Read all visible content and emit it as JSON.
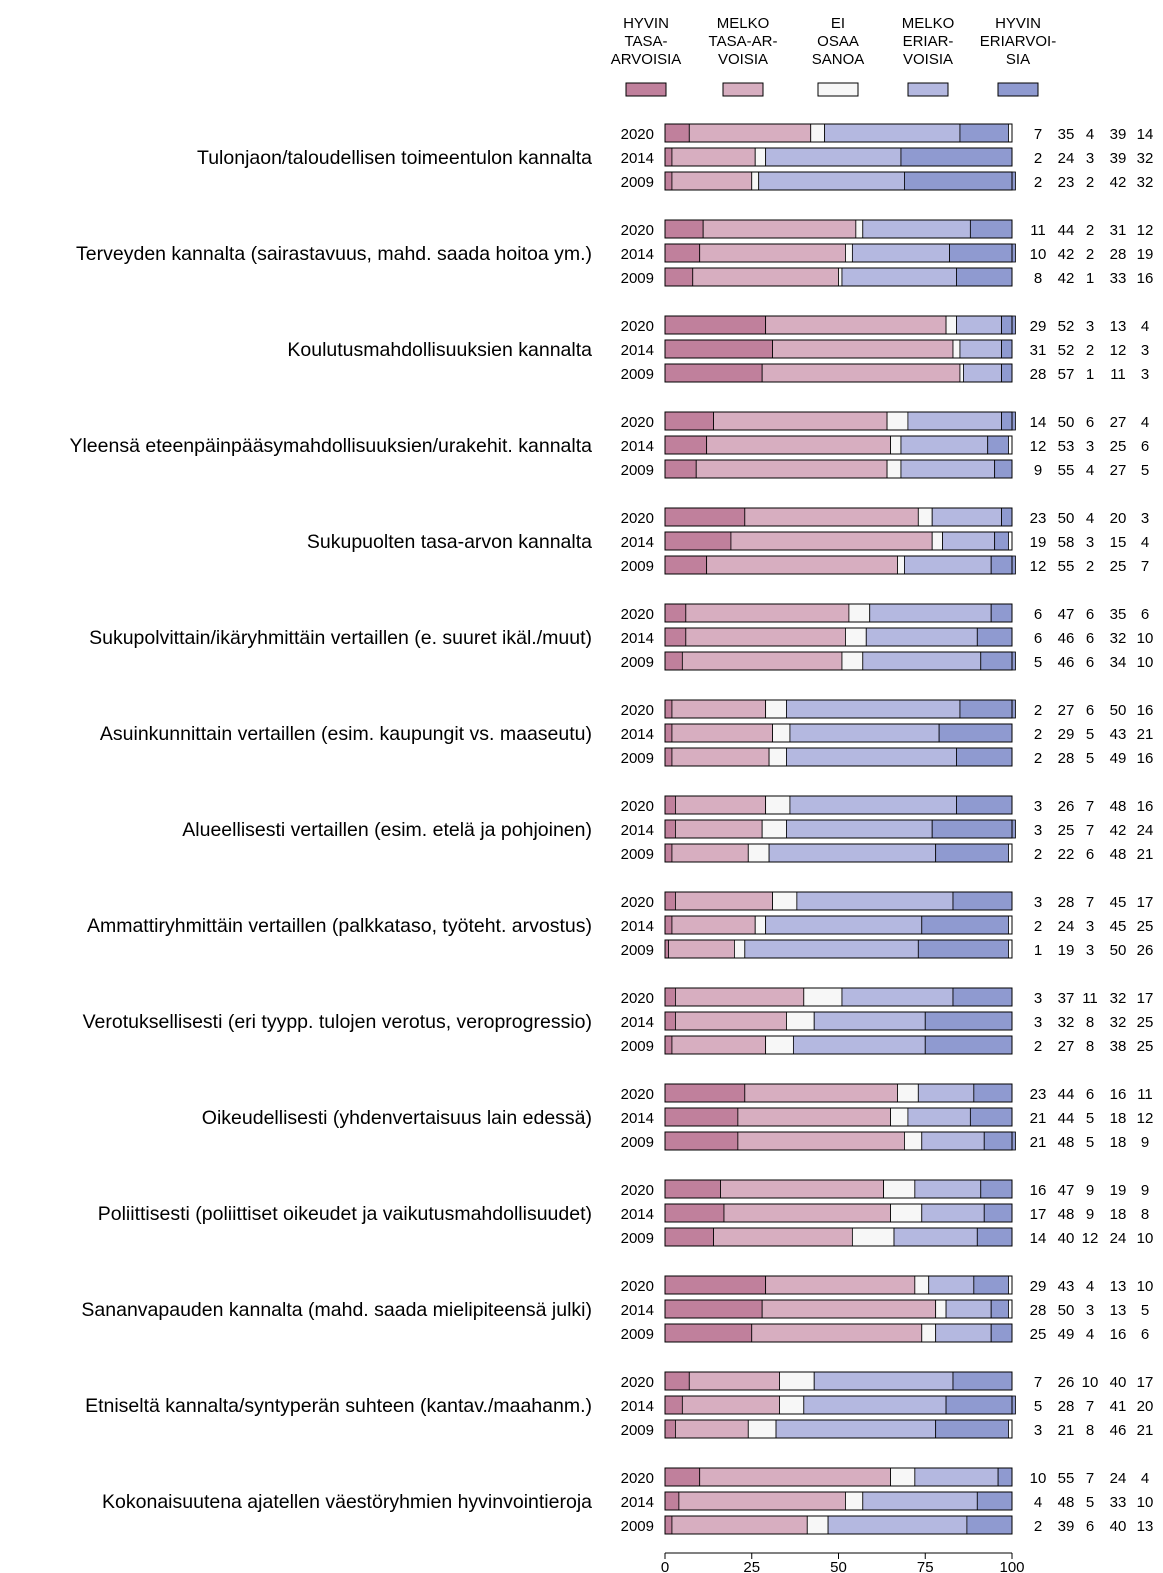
{
  "chart_data": {
    "type": "bar",
    "stacked": true,
    "orientation": "horizontal",
    "legend": {
      "placement": "top",
      "entries": [
        {
          "lines": [
            "HYVIN",
            "TASA-",
            "ARVOISIA"
          ],
          "color": "#c0809c"
        },
        {
          "lines": [
            "MELKO",
            "TASA-AR-",
            "VOISIA"
          ],
          "color": "#d7aec0"
        },
        {
          "lines": [
            "EI",
            "OSAA",
            "SANOA"
          ],
          "color": "#f7f7f7"
        },
        {
          "lines": [
            "MELKO",
            "ERIAR-",
            "VOISIA"
          ],
          "color": "#b4b8e0"
        },
        {
          "lines": [
            "HYVIN",
            "ERIARVOI-",
            "SIA"
          ],
          "color": "#8f9ad0"
        }
      ]
    },
    "xlim": [
      0,
      100
    ],
    "x_ticks": [
      "0",
      "25",
      "50",
      "75",
      "100"
    ],
    "groups": [
      {
        "label": "Tulonjaon/taloudellisen toimeentulon kannalta",
        "rows": [
          {
            "year": "2020",
            "values": [
              7,
              35,
              4,
              39,
              14
            ]
          },
          {
            "year": "2014",
            "values": [
              2,
              24,
              3,
              39,
              32
            ]
          },
          {
            "year": "2009",
            "values": [
              2,
              23,
              2,
              42,
              32
            ]
          }
        ]
      },
      {
        "label": "Terveyden kannalta (sairastavuus, mahd. saada hoitoa ym.)",
        "rows": [
          {
            "year": "2020",
            "values": [
              11,
              44,
              2,
              31,
              12
            ]
          },
          {
            "year": "2014",
            "values": [
              10,
              42,
              2,
              28,
              19
            ]
          },
          {
            "year": "2009",
            "values": [
              8,
              42,
              1,
              33,
              16
            ]
          }
        ]
      },
      {
        "label": "Koulutusmahdollisuuksien kannalta",
        "rows": [
          {
            "year": "2020",
            "values": [
              29,
              52,
              3,
              13,
              4
            ]
          },
          {
            "year": "2014",
            "values": [
              31,
              52,
              2,
              12,
              3
            ]
          },
          {
            "year": "2009",
            "values": [
              28,
              57,
              1,
              11,
              3
            ]
          }
        ]
      },
      {
        "label": "Yleensä eteenpäinpääsymahdollisuuksien/urakehit. kannalta",
        "rows": [
          {
            "year": "2020",
            "values": [
              14,
              50,
              6,
              27,
              4
            ]
          },
          {
            "year": "2014",
            "values": [
              12,
              53,
              3,
              25,
              6
            ]
          },
          {
            "year": "2009",
            "values": [
              9,
              55,
              4,
              27,
              5
            ]
          }
        ]
      },
      {
        "label": "Sukupuolten tasa-arvon kannalta",
        "rows": [
          {
            "year": "2020",
            "values": [
              23,
              50,
              4,
              20,
              3
            ]
          },
          {
            "year": "2014",
            "values": [
              19,
              58,
              3,
              15,
              4
            ]
          },
          {
            "year": "2009",
            "values": [
              12,
              55,
              2,
              25,
              7
            ]
          }
        ]
      },
      {
        "label": "Sukupolvittain/ikäryhmittäin vertaillen (e. suuret ikäl./muut)",
        "rows": [
          {
            "year": "2020",
            "values": [
              6,
              47,
              6,
              35,
              6
            ]
          },
          {
            "year": "2014",
            "values": [
              6,
              46,
              6,
              32,
              10
            ]
          },
          {
            "year": "2009",
            "values": [
              5,
              46,
              6,
              34,
              10
            ]
          }
        ]
      },
      {
        "label": "Asuinkunnittain vertaillen (esim. kaupungit vs. maaseutu)",
        "rows": [
          {
            "year": "2020",
            "values": [
              2,
              27,
              6,
              50,
              16
            ]
          },
          {
            "year": "2014",
            "values": [
              2,
              29,
              5,
              43,
              21
            ]
          },
          {
            "year": "2009",
            "values": [
              2,
              28,
              5,
              49,
              16
            ]
          }
        ]
      },
      {
        "label": "Alueellisesti vertaillen (esim. etelä ja pohjoinen)",
        "rows": [
          {
            "year": "2020",
            "values": [
              3,
              26,
              7,
              48,
              16
            ]
          },
          {
            "year": "2014",
            "values": [
              3,
              25,
              7,
              42,
              24
            ]
          },
          {
            "year": "2009",
            "values": [
              2,
              22,
              6,
              48,
              21
            ]
          }
        ]
      },
      {
        "label": "Ammattiryhmittäin vertaillen (palkkataso, työteht. arvostus)",
        "rows": [
          {
            "year": "2020",
            "values": [
              3,
              28,
              7,
              45,
              17
            ]
          },
          {
            "year": "2014",
            "values": [
              2,
              24,
              3,
              45,
              25
            ]
          },
          {
            "year": "2009",
            "values": [
              1,
              19,
              3,
              50,
              26
            ]
          }
        ]
      },
      {
        "label": "Verotuksellisesti (eri tyypp. tulojen verotus, veroprogressio)",
        "rows": [
          {
            "year": "2020",
            "values": [
              3,
              37,
              11,
              32,
              17
            ]
          },
          {
            "year": "2014",
            "values": [
              3,
              32,
              8,
              32,
              25
            ]
          },
          {
            "year": "2009",
            "values": [
              2,
              27,
              8,
              38,
              25
            ]
          }
        ]
      },
      {
        "label": "Oikeudellisesti (yhdenvertaisuus lain edessä)",
        "rows": [
          {
            "year": "2020",
            "values": [
              23,
              44,
              6,
              16,
              11
            ]
          },
          {
            "year": "2014",
            "values": [
              21,
              44,
              5,
              18,
              12
            ]
          },
          {
            "year": "2009",
            "values": [
              21,
              48,
              5,
              18,
              9
            ]
          }
        ]
      },
      {
        "label": "Poliittisesti (poliittiset oikeudet ja vaikutusmahdollisuudet)",
        "rows": [
          {
            "year": "2020",
            "values": [
              16,
              47,
              9,
              19,
              9
            ]
          },
          {
            "year": "2014",
            "values": [
              17,
              48,
              9,
              18,
              8
            ]
          },
          {
            "year": "2009",
            "values": [
              14,
              40,
              12,
              24,
              10
            ]
          }
        ]
      },
      {
        "label": "Sananvapauden kannalta (mahd. saada mielipiteensä julki)",
        "rows": [
          {
            "year": "2020",
            "values": [
              29,
              43,
              4,
              13,
              10
            ]
          },
          {
            "year": "2014",
            "values": [
              28,
              50,
              3,
              13,
              5
            ]
          },
          {
            "year": "2009",
            "values": [
              25,
              49,
              4,
              16,
              6
            ]
          }
        ]
      },
      {
        "label": "Etniseltä kannalta/syntyperän suhteen (kantav./maahanm.)",
        "rows": [
          {
            "year": "2020",
            "values": [
              7,
              26,
              10,
              40,
              17
            ]
          },
          {
            "year": "2014",
            "values": [
              5,
              28,
              7,
              41,
              20
            ]
          },
          {
            "year": "2009",
            "values": [
              3,
              21,
              8,
              46,
              21
            ]
          }
        ]
      },
      {
        "label": "Kokonaisuutena ajatellen väestöryhmien hyvinvointieroja",
        "rows": [
          {
            "year": "2020",
            "values": [
              10,
              55,
              7,
              24,
              4
            ]
          },
          {
            "year": "2014",
            "values": [
              4,
              48,
              5,
              33,
              10
            ]
          },
          {
            "year": "2009",
            "values": [
              2,
              39,
              6,
              40,
              13
            ]
          }
        ]
      }
    ]
  }
}
